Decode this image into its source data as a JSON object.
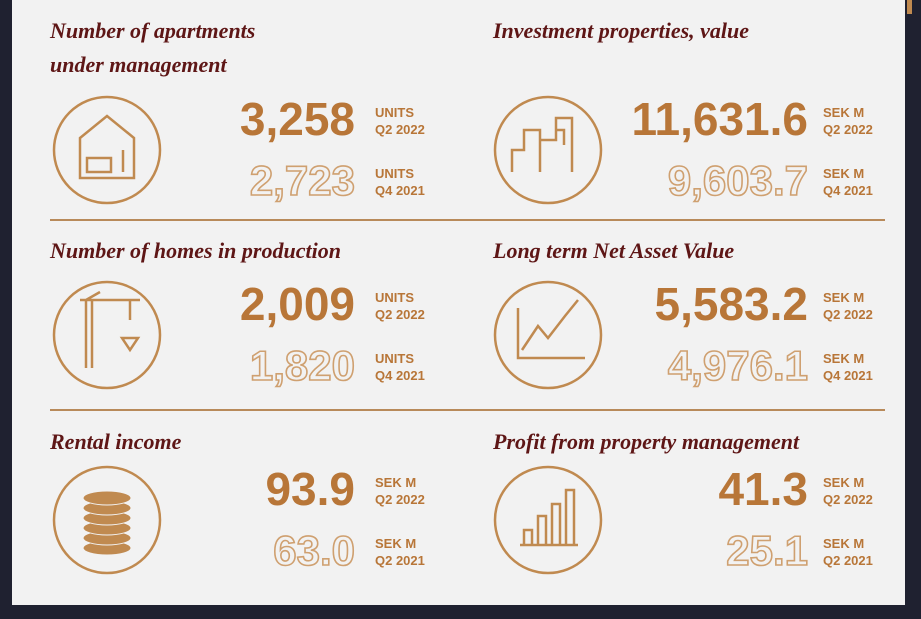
{
  "panels": [
    {
      "title_lines": [
        "Number of apartments",
        "under management"
      ],
      "current": {
        "value": "3,258",
        "unit": "UNITS",
        "period": "Q2 2022"
      },
      "previous": {
        "value": "2,723",
        "unit": "UNITS",
        "period": "Q4 2021"
      }
    },
    {
      "title_lines": [
        "Investment properties, value"
      ],
      "current": {
        "value": "11,631.6",
        "unit": "SEK M",
        "period": "Q2 2022"
      },
      "previous": {
        "value": "9,603.7",
        "unit": "SEK M",
        "period": "Q4 2021"
      }
    },
    {
      "title_lines": [
        "Number of homes in production"
      ],
      "current": {
        "value": "2,009",
        "unit": "UNITS",
        "period": "Q2 2022"
      },
      "previous": {
        "value": "1,820",
        "unit": "UNITS",
        "period": "Q4 2021"
      }
    },
    {
      "title_lines": [
        "Long term Net Asset Value"
      ],
      "current": {
        "value": "5,583.2",
        "unit": "SEK M",
        "period": "Q2 2022"
      },
      "previous": {
        "value": "4,976.1",
        "unit": "SEK M",
        "period": "Q4 2021"
      }
    },
    {
      "title_lines": [
        "Rental income"
      ],
      "current": {
        "value": "93.9",
        "unit": "SEK M",
        "period": "Q2 2022"
      },
      "previous": {
        "value": "63.0",
        "unit": "SEK M",
        "period": "Q2 2021"
      }
    },
    {
      "title_lines": [
        "Profit from property management"
      ],
      "current": {
        "value": "41.3",
        "unit": "SEK M",
        "period": "Q2 2022"
      },
      "previous": {
        "value": "25.1",
        "unit": "SEK M",
        "period": "Q2 2021"
      }
    }
  ]
}
